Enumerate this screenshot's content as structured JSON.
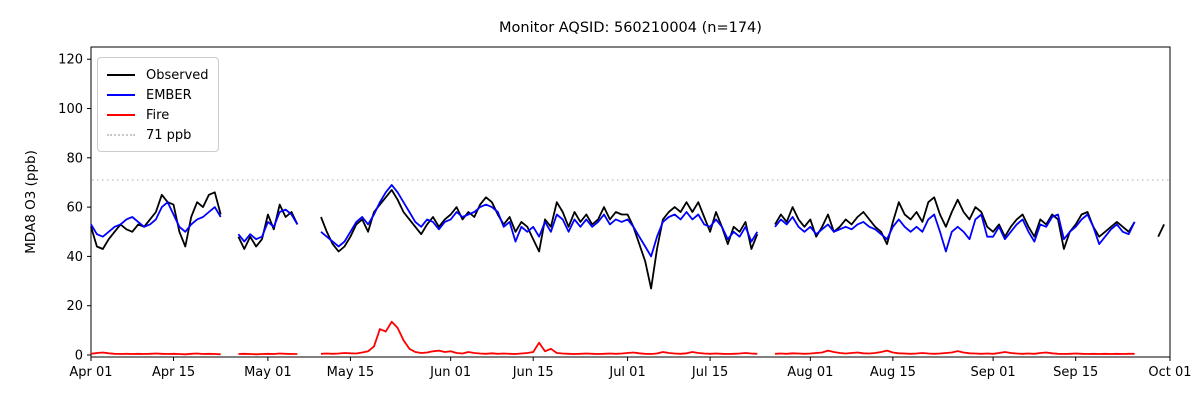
{
  "chart_data": {
    "type": "line",
    "title": "Monitor AQSID: 560210004 (n=174)",
    "ylabel": "MDA8 O3 (ppb)",
    "xlabel": "",
    "ylim": [
      -1,
      125
    ],
    "yticks": [
      0,
      20,
      40,
      60,
      80,
      100,
      120
    ],
    "x_start_label": "Apr 01",
    "x_end_label": "Oct 01",
    "n_days": 183,
    "x_tick_days": [
      0,
      14,
      30,
      44,
      61,
      75,
      91,
      105,
      122,
      136,
      153,
      167,
      183
    ],
    "x_tick_labels": [
      "Apr 01",
      "Apr 15",
      "May 01",
      "May 15",
      "Jun 01",
      "Jun 15",
      "Jul 01",
      "Jul 15",
      "Aug 01",
      "Aug 15",
      "Sep 01",
      "Sep 15",
      "Oct 01"
    ],
    "threshold": {
      "value": 71,
      "label": "71 ppb",
      "color": "#c8c8c8",
      "style": "dotted"
    },
    "legend_position": "upper-left",
    "grid": false,
    "series": [
      {
        "name": "Observed",
        "color": "#000000",
        "values": [
          52,
          44,
          43,
          47,
          50,
          53,
          51,
          50,
          53,
          52,
          55,
          58,
          65,
          62,
          61,
          50,
          44,
          56,
          62,
          60,
          65,
          66,
          57,
          null,
          null,
          48,
          43,
          48,
          44,
          47,
          57,
          51,
          61,
          56,
          58,
          53,
          null,
          null,
          null,
          56,
          50,
          45,
          42,
          44,
          48,
          53,
          55,
          50,
          58,
          61,
          64,
          67,
          63,
          58,
          55,
          52,
          49,
          53,
          56,
          52,
          55,
          57,
          60,
          55,
          58,
          56,
          61,
          64,
          62,
          57,
          53,
          56,
          50,
          54,
          52,
          47,
          42,
          55,
          52,
          62,
          58,
          52,
          58,
          54,
          57,
          53,
          55,
          60,
          55,
          58,
          57,
          57,
          52,
          45,
          38,
          27,
          43,
          55,
          58,
          60,
          58,
          62,
          58,
          62,
          56,
          50,
          58,
          52,
          45,
          52,
          50,
          54,
          43,
          49,
          null,
          null,
          53,
          57,
          54,
          60,
          55,
          52,
          55,
          48,
          52,
          57,
          50,
          52,
          55,
          53,
          56,
          58,
          55,
          52,
          50,
          45,
          54,
          62,
          57,
          55,
          58,
          54,
          62,
          64,
          57,
          52,
          58,
          63,
          58,
          55,
          60,
          58,
          52,
          50,
          53,
          48,
          52,
          55,
          57,
          52,
          48,
          55,
          53,
          57,
          55,
          43,
          50,
          53,
          57,
          58,
          52,
          48,
          50,
          52,
          54,
          52,
          50,
          54,
          null,
          null,
          null,
          48,
          53,
          null
        ]
      },
      {
        "name": "EMBER",
        "color": "#0000ff",
        "values": [
          53,
          49,
          48,
          50,
          52,
          53,
          55,
          56,
          54,
          52,
          53,
          55,
          60,
          62,
          57,
          52,
          50,
          53,
          55,
          56,
          58,
          60,
          56,
          null,
          null,
          49,
          46,
          49,
          47,
          48,
          54,
          52,
          58,
          59,
          57,
          53,
          null,
          null,
          null,
          50,
          48,
          46,
          44,
          46,
          50,
          54,
          56,
          53,
          57,
          62,
          66,
          69,
          66,
          62,
          58,
          54,
          52,
          55,
          54,
          51,
          54,
          55,
          58,
          56,
          57,
          58,
          60,
          61,
          60,
          58,
          52,
          54,
          46,
          52,
          50,
          52,
          48,
          54,
          50,
          57,
          55,
          50,
          55,
          52,
          55,
          52,
          54,
          57,
          53,
          55,
          54,
          55,
          52,
          48,
          44,
          40,
          48,
          54,
          56,
          57,
          55,
          58,
          55,
          57,
          53,
          52,
          55,
          52,
          47,
          50,
          48,
          52,
          46,
          50,
          null,
          null,
          52,
          55,
          53,
          56,
          52,
          50,
          52,
          49,
          51,
          53,
          50,
          51,
          52,
          51,
          53,
          54,
          52,
          51,
          49,
          47,
          52,
          55,
          52,
          50,
          52,
          50,
          55,
          57,
          50,
          42,
          50,
          52,
          50,
          47,
          55,
          57,
          48,
          48,
          52,
          47,
          50,
          53,
          55,
          50,
          46,
          53,
          52,
          56,
          57,
          47,
          50,
          52,
          55,
          57,
          52,
          45,
          48,
          51,
          53,
          50,
          49,
          54,
          null,
          null,
          null,
          null,
          null,
          null
        ]
      },
      {
        "name": "Fire",
        "color": "#ff0000",
        "values": [
          0.5,
          0.8,
          1.0,
          0.7,
          0.5,
          0.4,
          0.5,
          0.4,
          0.5,
          0.4,
          0.5,
          0.6,
          0.5,
          0.4,
          0.5,
          0.4,
          0.3,
          0.5,
          0.6,
          0.4,
          0.5,
          0.4,
          0.3,
          null,
          null,
          0.4,
          0.5,
          0.4,
          0.3,
          0.4,
          0.5,
          0.4,
          0.6,
          0.5,
          0.4,
          0.4,
          null,
          null,
          null,
          0.5,
          0.6,
          0.5,
          0.6,
          0.8,
          0.7,
          0.6,
          1.0,
          1.5,
          3.5,
          10.5,
          9.5,
          13.5,
          11.0,
          6.0,
          2.5,
          1.2,
          0.8,
          1.0,
          1.5,
          1.8,
          1.2,
          1.5,
          0.8,
          0.6,
          1.2,
          0.8,
          0.6,
          0.5,
          0.7,
          0.5,
          0.6,
          0.5,
          0.4,
          0.6,
          0.8,
          1.2,
          5.0,
          1.5,
          2.5,
          0.8,
          0.6,
          0.5,
          0.4,
          0.5,
          0.6,
          0.5,
          0.4,
          0.5,
          0.6,
          0.5,
          0.6,
          0.8,
          1.0,
          0.7,
          0.5,
          0.4,
          0.6,
          1.2,
          0.8,
          0.6,
          0.5,
          0.7,
          1.2,
          0.8,
          0.6,
          0.5,
          0.6,
          0.5,
          0.4,
          0.5,
          0.6,
          0.8,
          0.6,
          0.5,
          null,
          null,
          0.5,
          0.6,
          0.5,
          0.7,
          0.6,
          0.5,
          0.6,
          0.8,
          1.0,
          1.8,
          1.2,
          0.8,
          0.6,
          0.8,
          1.0,
          0.7,
          0.6,
          0.8,
          1.2,
          1.8,
          1.0,
          0.7,
          0.6,
          0.5,
          0.6,
          0.8,
          0.6,
          0.5,
          0.6,
          0.8,
          1.0,
          1.6,
          1.0,
          0.7,
          0.6,
          0.5,
          0.6,
          0.5,
          0.8,
          1.2,
          0.8,
          0.6,
          0.5,
          0.6,
          0.5,
          0.8,
          1.0,
          0.7,
          0.5,
          0.4,
          0.5,
          0.6,
          0.5,
          0.4,
          0.5,
          0.4,
          0.5,
          0.4,
          0.5,
          0.4,
          0.5,
          0.5,
          null,
          null,
          null,
          null,
          null,
          null
        ]
      }
    ]
  },
  "axis_colors": {
    "spine": "#000000",
    "tick_text": "#000000"
  }
}
